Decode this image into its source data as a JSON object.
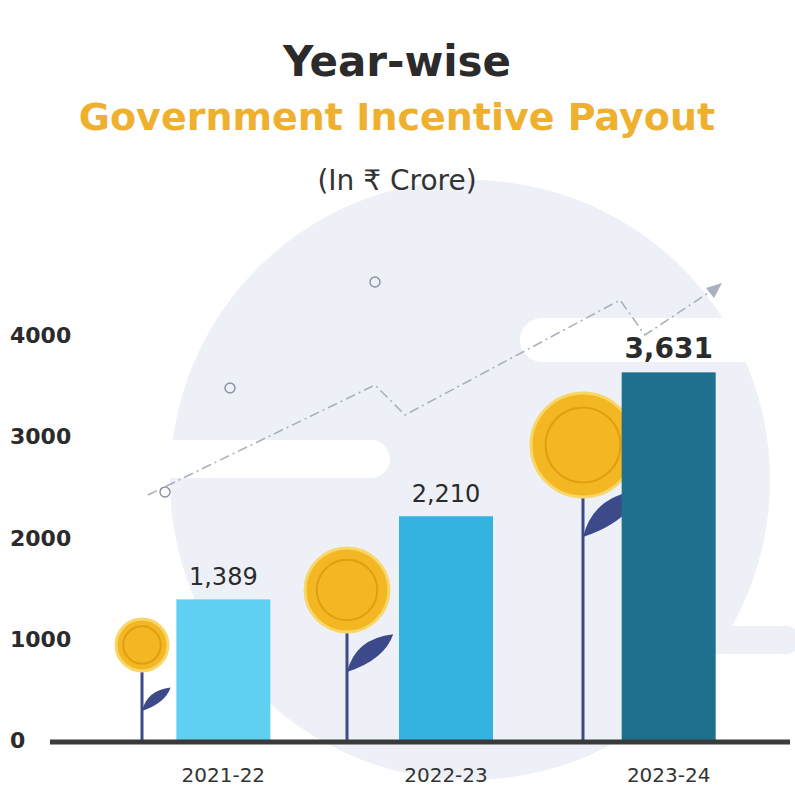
{
  "chart_data": {
    "type": "bar",
    "title": "Year-wise",
    "subtitle": "Government Incentive Payout",
    "y_label": "(In ₹ Crore)",
    "categories": [
      "2021-22",
      "2022-23",
      "2023-24"
    ],
    "values": [
      1389,
      2210,
      3631
    ],
    "value_labels": [
      "1,389",
      "2,210",
      "3,631"
    ],
    "colors": [
      "#5fd0f2",
      "#35b3e0",
      "#1f6f8f"
    ],
    "ylim": [
      0,
      4000
    ],
    "yticks": [
      0,
      1000,
      2000,
      3000,
      4000
    ],
    "grid": false,
    "data_labels": true
  }
}
